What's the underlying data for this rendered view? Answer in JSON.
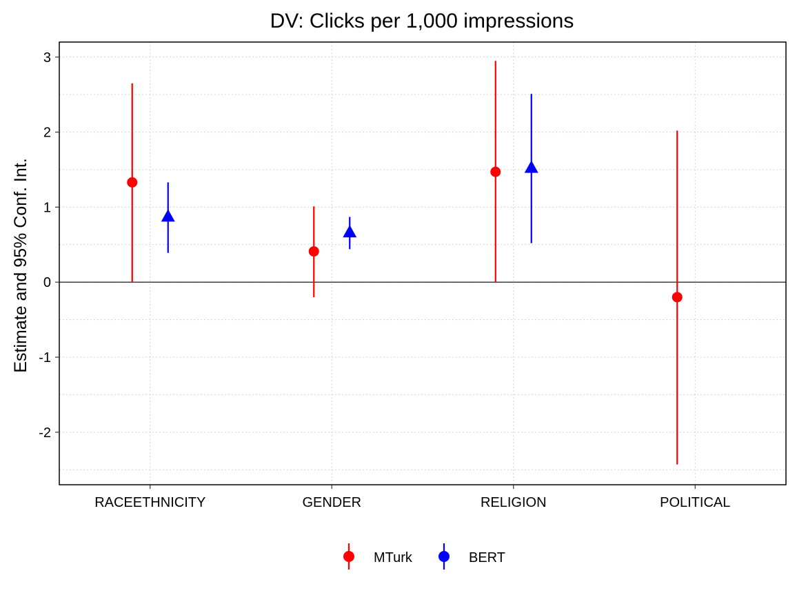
{
  "chart_data": {
    "type": "scatter",
    "title": "DV: Clicks per 1,000 impressions",
    "xlabel": "",
    "ylabel": "Estimate and 95% Conf. Int.",
    "categories": [
      "RACEETHNICITY",
      "GENDER",
      "RELIGION",
      "POLITICAL"
    ],
    "ylim": [
      -2.7,
      3.2
    ],
    "yticks": [
      3,
      2,
      1,
      0,
      -1,
      -2
    ],
    "ytick_labels": [
      "3",
      "2",
      "1",
      "0",
      "-1",
      "-2"
    ],
    "reference_line": 0,
    "grid": true,
    "legend_position": "bottom",
    "series": [
      {
        "name": "MTurk",
        "color": "#ff0000",
        "marker": "circle",
        "points": [
          {
            "category": "RACEETHNICITY",
            "estimate": 1.33,
            "lower": 0.0,
            "upper": 2.65
          },
          {
            "category": "GENDER",
            "estimate": 0.41,
            "lower": -0.2,
            "upper": 1.01
          },
          {
            "category": "RELIGION",
            "estimate": 1.47,
            "lower": 0.0,
            "upper": 2.95
          },
          {
            "category": "POLITICAL",
            "estimate": -0.2,
            "lower": -2.43,
            "upper": 2.02
          }
        ]
      },
      {
        "name": "BERT",
        "color": "#0000ff",
        "marker": "triangle",
        "points": [
          {
            "category": "RACEETHNICITY",
            "estimate": 0.87,
            "lower": 0.39,
            "upper": 1.33
          },
          {
            "category": "GENDER",
            "estimate": 0.66,
            "lower": 0.44,
            "upper": 0.87
          },
          {
            "category": "RELIGION",
            "estimate": 1.52,
            "lower": 0.52,
            "upper": 2.51
          }
        ]
      }
    ]
  }
}
